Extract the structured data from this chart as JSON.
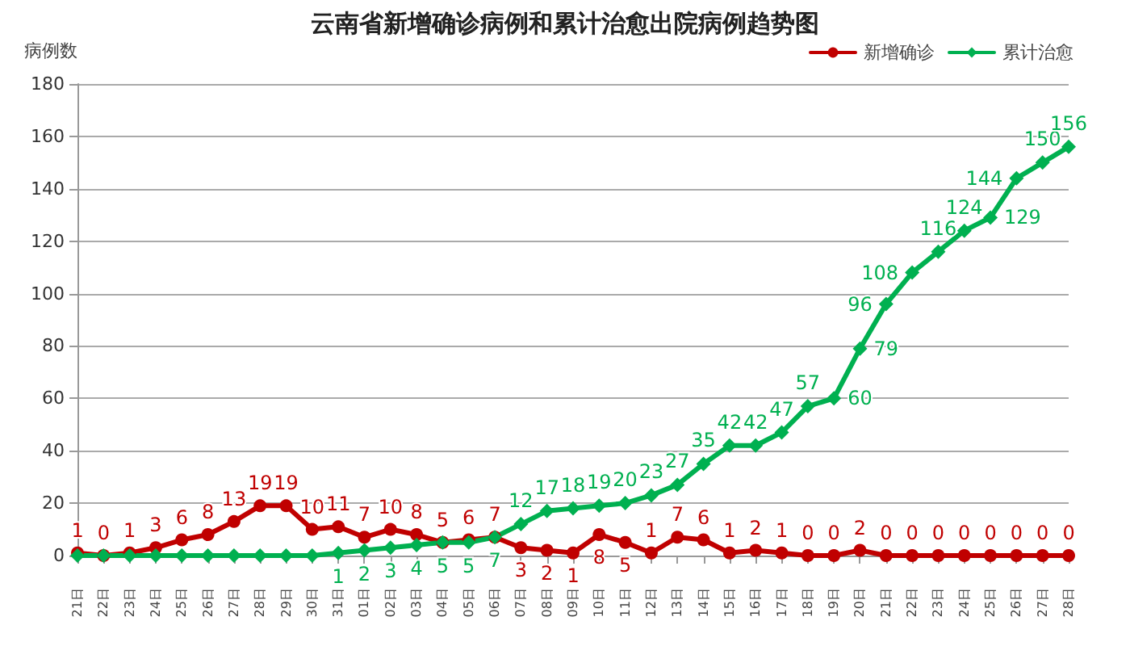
{
  "chart_data": {
    "type": "line",
    "title": "云南省新增确诊病例和累计治愈出院病例趋势图",
    "ylabel": "病例数",
    "categories": [
      "21日",
      "22日",
      "23日",
      "24日",
      "25日",
      "26日",
      "27日",
      "28日",
      "29日",
      "30日",
      "31日",
      "01日",
      "02日",
      "03日",
      "04日",
      "05日",
      "06日",
      "07日",
      "08日",
      "09日",
      "10日",
      "11日",
      "12日",
      "13日",
      "14日",
      "15日",
      "16日",
      "17日",
      "18日",
      "19日",
      "20日",
      "21日",
      "22日",
      "23日",
      "24日",
      "25日",
      "26日",
      "27日",
      "28日"
    ],
    "series": [
      {
        "name": "新增确诊",
        "color": "#c00000",
        "marker": "circle",
        "values": [
          1,
          0,
          1,
          3,
          6,
          8,
          13,
          19,
          19,
          10,
          11,
          7,
          10,
          8,
          5,
          6,
          7,
          3,
          2,
          1,
          8,
          5,
          1,
          7,
          6,
          1,
          2,
          1,
          0,
          0,
          2,
          0,
          0,
          0,
          0,
          0,
          0,
          0,
          0
        ]
      },
      {
        "name": "累计治愈",
        "color": "#00b050",
        "marker": "diamond",
        "values": [
          0,
          0,
          0,
          0,
          0,
          0,
          0,
          0,
          0,
          0,
          1,
          2,
          3,
          4,
          5,
          5,
          7,
          12,
          17,
          18,
          19,
          20,
          23,
          27,
          35,
          42,
          42,
          47,
          57,
          60,
          79,
          96,
          108,
          116,
          124,
          129,
          144,
          150,
          156
        ],
        "value_labels": [
          null,
          null,
          null,
          null,
          null,
          null,
          null,
          null,
          null,
          null,
          "1",
          "2",
          "3",
          "4",
          "5",
          "5",
          "7",
          "12",
          "17",
          "18",
          "19",
          "20",
          "23",
          "27",
          "35",
          "42",
          "42",
          "47",
          "57",
          "60",
          "79",
          "96",
          "108",
          "116",
          "124",
          "129",
          "144",
          "150",
          "156"
        ]
      }
    ],
    "ylim": [
      0,
      180
    ],
    "yticks": [
      0,
      20,
      40,
      60,
      80,
      100,
      120,
      140,
      160,
      180
    ],
    "grid": "y",
    "legend": "top right",
    "data_labels": true,
    "line_style": "solid"
  }
}
